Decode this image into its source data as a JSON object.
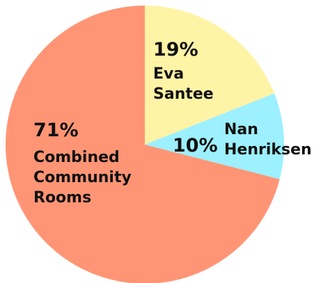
{
  "chart_data": {
    "type": "pie",
    "categories": [
      "Eva Santee",
      "Nan Henriksen",
      "Combined Community Rooms"
    ],
    "values": [
      19,
      10,
      71
    ],
    "value_labels": [
      "19%",
      "10%",
      "71%"
    ],
    "colors": [
      "#fff3a6",
      "#9cf0ff",
      "#ff9575"
    ]
  }
}
